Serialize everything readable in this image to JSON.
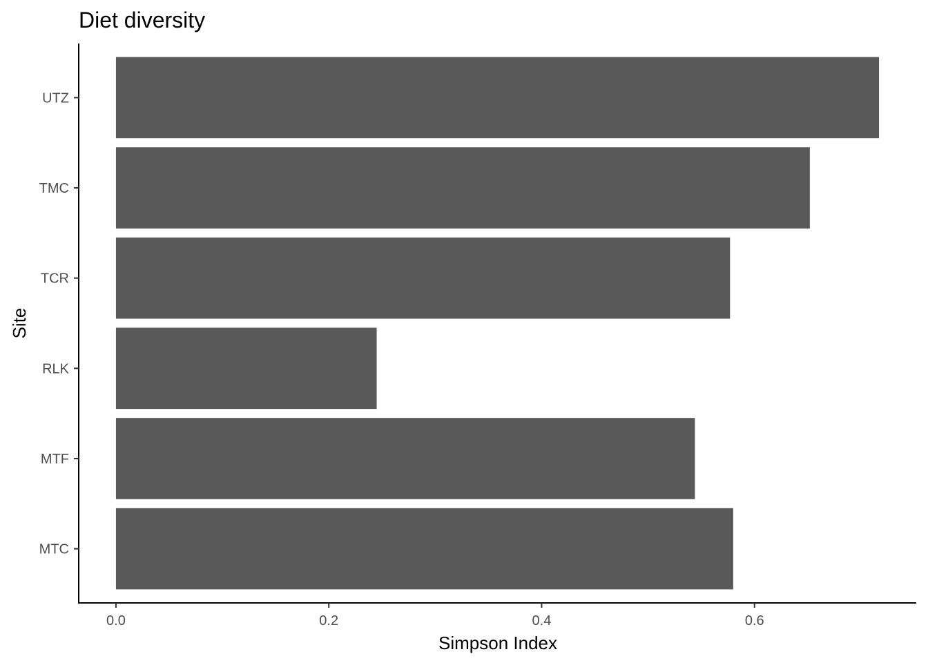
{
  "chart_data": {
    "type": "bar",
    "orientation": "horizontal",
    "title": "Diet diversity",
    "xlabel": "Simpson Index",
    "ylabel": "Site",
    "categories": [
      "MTC",
      "MTF",
      "RLK",
      "TCR",
      "TMC",
      "UTZ"
    ],
    "values": [
      0.58,
      0.544,
      0.245,
      0.577,
      0.652,
      0.717
    ],
    "xlim": [
      -0.035,
      0.752
    ],
    "xticks": [
      0.0,
      0.2,
      0.4,
      0.6
    ],
    "xtick_labels": [
      "0.0",
      "0.2",
      "0.4",
      "0.6"
    ],
    "grid": false,
    "legend": "none",
    "bar_color": "#595959"
  }
}
